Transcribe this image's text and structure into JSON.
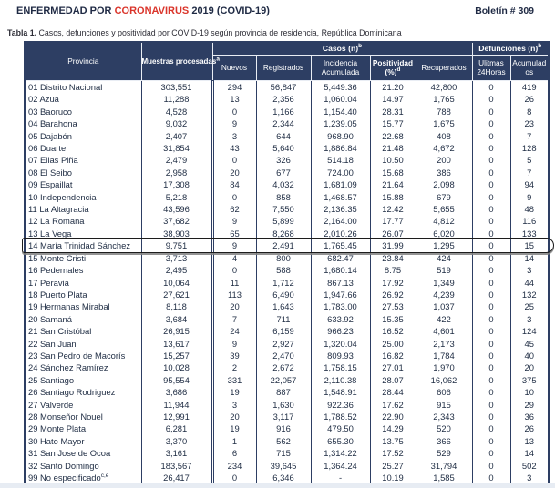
{
  "header": {
    "title_part1": "ENFERMEDAD POR ",
    "title_highlight": "CORONAVIRUS",
    "title_part2": " 2019 (COVID-19)",
    "bulletin": "Boletín # 309"
  },
  "caption": {
    "prefix": "Tabla 1.",
    "text": " Casos, defunciones y positividad por COVID-19 según provincia de residencia, República Dominicana"
  },
  "colors": {
    "header_navy": "#2d3e63",
    "title_red": "#da352b",
    "text_dark": "#1d2b42"
  },
  "table": {
    "col_provincia": "Provincia",
    "col_muestras": {
      "label": "Muestras procesadas",
      "sup": "a"
    },
    "group_casos": {
      "label": "Casos (n)",
      "sup": "b"
    },
    "group_defunciones": {
      "label": "Defunciones (n)",
      "sup": "b"
    },
    "col_nuevos": "Nuevos",
    "col_registrados": "Registrados",
    "col_incidencia": "Incidencia Acumulada",
    "col_positividad": {
      "label": "Positividad",
      "label2": "(%)",
      "sup": "d"
    },
    "col_recuperados": "Recuperados",
    "col_ultimas": "Ulitmas 24Horas",
    "col_acumulados": "Acumulados",
    "highlighted_provincia": "14 María Trinidad Sánchez",
    "rows": [
      {
        "provincia": "01 Distrito Nacional",
        "muestras": "303,551",
        "nuevos": "294",
        "registrados": "56,847",
        "incidencia": "5,449.36",
        "positividad": "21.20",
        "recuperados": "42,800",
        "ultimas24": "0",
        "acumulados": "419"
      },
      {
        "provincia": "02 Azua",
        "muestras": "11,288",
        "nuevos": "13",
        "registrados": "2,356",
        "incidencia": "1,060.04",
        "positividad": "14.97",
        "recuperados": "1,765",
        "ultimas24": "0",
        "acumulados": "26"
      },
      {
        "provincia": "03 Baoruco",
        "muestras": "4,528",
        "nuevos": "0",
        "registrados": "1,166",
        "incidencia": "1,154.40",
        "positividad": "28.31",
        "recuperados": "788",
        "ultimas24": "0",
        "acumulados": "8"
      },
      {
        "provincia": "04 Barahona",
        "muestras": "9,032",
        "nuevos": "9",
        "registrados": "2,344",
        "incidencia": "1,239.05",
        "positividad": "15.77",
        "recuperados": "1,675",
        "ultimas24": "0",
        "acumulados": "23"
      },
      {
        "provincia": "05 Dajabón",
        "muestras": "2,407",
        "nuevos": "3",
        "registrados": "644",
        "incidencia": "968.90",
        "positividad": "22.68",
        "recuperados": "408",
        "ultimas24": "0",
        "acumulados": "7"
      },
      {
        "provincia": "06 Duarte",
        "muestras": "31,854",
        "nuevos": "43",
        "registrados": "5,640",
        "incidencia": "1,886.84",
        "positividad": "21.48",
        "recuperados": "4,672",
        "ultimas24": "0",
        "acumulados": "128"
      },
      {
        "provincia": "07 Elias Piña",
        "muestras": "2,479",
        "nuevos": "0",
        "registrados": "326",
        "incidencia": "514.18",
        "positividad": "10.50",
        "recuperados": "200",
        "ultimas24": "0",
        "acumulados": "5"
      },
      {
        "provincia": "08 El Seibo",
        "muestras": "2,958",
        "nuevos": "20",
        "registrados": "677",
        "incidencia": "724.00",
        "positividad": "15.68",
        "recuperados": "386",
        "ultimas24": "0",
        "acumulados": "7"
      },
      {
        "provincia": "09 Espaillat",
        "muestras": "17,308",
        "nuevos": "84",
        "registrados": "4,032",
        "incidencia": "1,681.09",
        "positividad": "21.64",
        "recuperados": "2,098",
        "ultimas24": "0",
        "acumulados": "94"
      },
      {
        "provincia": "10 Independencia",
        "muestras": "5,218",
        "nuevos": "0",
        "registrados": "858",
        "incidencia": "1,468.57",
        "positividad": "15.88",
        "recuperados": "679",
        "ultimas24": "0",
        "acumulados": "9"
      },
      {
        "provincia": "11 La Altagracia",
        "muestras": "43,596",
        "nuevos": "62",
        "registrados": "7,550",
        "incidencia": "2,136.35",
        "positividad": "12.42",
        "recuperados": "5,655",
        "ultimas24": "0",
        "acumulados": "48"
      },
      {
        "provincia": "12 La Romana",
        "muestras": "37,682",
        "nuevos": "9",
        "registrados": "5,899",
        "incidencia": "2,164.00",
        "positividad": "17.77",
        "recuperados": "4,812",
        "ultimas24": "0",
        "acumulados": "116"
      },
      {
        "provincia": "13 La Vega",
        "muestras": "38,903",
        "nuevos": "65",
        "registrados": "8,268",
        "incidencia": "2,010.26",
        "positividad": "26.07",
        "recuperados": "6,020",
        "ultimas24": "0",
        "acumulados": "133"
      },
      {
        "provincia": "14 María Trinidad Sánchez",
        "muestras": "9,751",
        "nuevos": "9",
        "registrados": "2,491",
        "incidencia": "1,765.45",
        "positividad": "31.99",
        "recuperados": "1,295",
        "ultimas24": "0",
        "acumulados": "15"
      },
      {
        "provincia": "15 Monte Cristi",
        "muestras": "3,713",
        "nuevos": "4",
        "registrados": "800",
        "incidencia": "682.47",
        "positividad": "23.84",
        "recuperados": "424",
        "ultimas24": "0",
        "acumulados": "14"
      },
      {
        "provincia": "16 Pedernales",
        "muestras": "2,495",
        "nuevos": "0",
        "registrados": "588",
        "incidencia": "1,680.14",
        "positividad": "8.75",
        "recuperados": "519",
        "ultimas24": "0",
        "acumulados": "3"
      },
      {
        "provincia": "17 Peravia",
        "muestras": "10,064",
        "nuevos": "11",
        "registrados": "1,712",
        "incidencia": "867.13",
        "positividad": "17.92",
        "recuperados": "1,349",
        "ultimas24": "0",
        "acumulados": "44"
      },
      {
        "provincia": "18 Puerto Plata",
        "muestras": "27,621",
        "nuevos": "113",
        "registrados": "6,490",
        "incidencia": "1,947.66",
        "positividad": "26.92",
        "recuperados": "4,239",
        "ultimas24": "0",
        "acumulados": "132"
      },
      {
        "provincia": "19 Hermanas Mirabal",
        "muestras": "8,118",
        "nuevos": "20",
        "registrados": "1,643",
        "incidencia": "1,783.00",
        "positividad": "27.53",
        "recuperados": "1,037",
        "ultimas24": "0",
        "acumulados": "25"
      },
      {
        "provincia": "20 Samaná",
        "muestras": "3,684",
        "nuevos": "7",
        "registrados": "711",
        "incidencia": "633.92",
        "positividad": "15.35",
        "recuperados": "422",
        "ultimas24": "0",
        "acumulados": "3"
      },
      {
        "provincia": "21 San Cristóbal",
        "muestras": "26,915",
        "nuevos": "24",
        "registrados": "6,159",
        "incidencia": "966.23",
        "positividad": "16.52",
        "recuperados": "4,601",
        "ultimas24": "0",
        "acumulados": "124"
      },
      {
        "provincia": "22 San Juan",
        "muestras": "13,617",
        "nuevos": "9",
        "registrados": "2,927",
        "incidencia": "1,320.04",
        "positividad": "25.00",
        "recuperados": "2,173",
        "ultimas24": "0",
        "acumulados": "45"
      },
      {
        "provincia": "23 San Pedro de Macorís",
        "muestras": "15,257",
        "nuevos": "39",
        "registrados": "2,470",
        "incidencia": "809.93",
        "positividad": "16.82",
        "recuperados": "1,784",
        "ultimas24": "0",
        "acumulados": "40"
      },
      {
        "provincia": "24 Sánchez Ramírez",
        "muestras": "10,028",
        "nuevos": "2",
        "registrados": "2,672",
        "incidencia": "1,758.15",
        "positividad": "27.01",
        "recuperados": "1,970",
        "ultimas24": "0",
        "acumulados": "20"
      },
      {
        "provincia": "25 Santiago",
        "muestras": "95,554",
        "nuevos": "331",
        "registrados": "22,057",
        "incidencia": "2,110.38",
        "positividad": "28.07",
        "recuperados": "16,062",
        "ultimas24": "0",
        "acumulados": "375"
      },
      {
        "provincia": "26 Santiago Rodriguez",
        "muestras": "3,686",
        "nuevos": "19",
        "registrados": "887",
        "incidencia": "1,548.91",
        "positividad": "28.44",
        "recuperados": "606",
        "ultimas24": "0",
        "acumulados": "10"
      },
      {
        "provincia": "27 Valverde",
        "muestras": "11,944",
        "nuevos": "3",
        "registrados": "1,630",
        "incidencia": "922.36",
        "positividad": "17.62",
        "recuperados": "915",
        "ultimas24": "0",
        "acumulados": "29"
      },
      {
        "provincia": "28 Monseñor Nouel",
        "muestras": "12,991",
        "nuevos": "20",
        "registrados": "3,117",
        "incidencia": "1,788.52",
        "positividad": "22.90",
        "recuperados": "2,343",
        "ultimas24": "0",
        "acumulados": "36"
      },
      {
        "provincia": "29 Monte Plata",
        "muestras": "6,281",
        "nuevos": "19",
        "registrados": "916",
        "incidencia": "479.50",
        "positividad": "14.29",
        "recuperados": "520",
        "ultimas24": "0",
        "acumulados": "26"
      },
      {
        "provincia": "30 Hato Mayor",
        "muestras": "3,370",
        "nuevos": "1",
        "registrados": "562",
        "incidencia": "655.30",
        "positividad": "13.75",
        "recuperados": "366",
        "ultimas24": "0",
        "acumulados": "13"
      },
      {
        "provincia": "31 San Jose de Ocoa",
        "muestras": "3,161",
        "nuevos": "6",
        "registrados": "715",
        "incidencia": "1,314.22",
        "positividad": "17.52",
        "recuperados": "529",
        "ultimas24": "0",
        "acumulados": "14"
      },
      {
        "provincia": "32 Santo Domingo",
        "muestras": "183,567",
        "nuevos": "234",
        "registrados": "39,645",
        "incidencia": "1,364.24",
        "positividad": "25.27",
        "recuperados": "31,794",
        "ultimas24": "0",
        "acumulados": "502"
      },
      {
        "provincia": "99 No especificado",
        "sup": "c,e",
        "muestras": "26,417",
        "nuevos": "0",
        "registrados": "6,346",
        "incidencia": "-",
        "positividad": "10.19",
        "recuperados": "1,585",
        "ultimas24": "0",
        "acumulados": "3"
      }
    ]
  }
}
